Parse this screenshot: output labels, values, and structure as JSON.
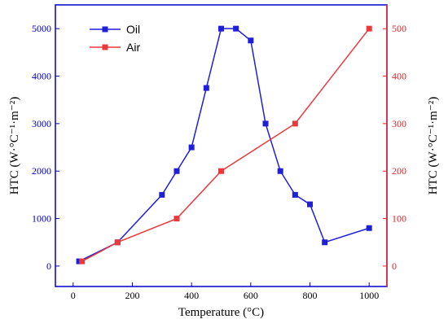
{
  "chart_data": {
    "type": "line",
    "title": "",
    "xlabel": "Temperature (°C)",
    "xlim": [
      -60,
      1060
    ],
    "xticks": [
      0,
      200,
      400,
      600,
      800,
      1000
    ],
    "left_axis": {
      "label": "HTC (W·°C⁻¹·m⁻²)",
      "ylim": [
        -430,
        5500
      ],
      "ticks": [
        0,
        1000,
        2000,
        3000,
        4000,
        5000
      ],
      "color": "#0000cc"
    },
    "right_axis": {
      "label": "HTC (W·°C⁻¹·m⁻²)",
      "ylim": [
        -43,
        550
      ],
      "ticks": [
        0,
        100,
        200,
        300,
        400,
        500
      ],
      "color": "#e8232a"
    },
    "grid": false,
    "legend_position": "top-left",
    "series": [
      {
        "name": "Oil",
        "axis": "left",
        "color": "#1f1fd8",
        "x": [
          20,
          150,
          300,
          350,
          400,
          450,
          500,
          550,
          600,
          650,
          700,
          750,
          800,
          850,
          1000
        ],
        "y": [
          100,
          500,
          1500,
          2000,
          2500,
          3750,
          5000,
          5000,
          4750,
          3000,
          2000,
          1500,
          1300,
          500,
          800
        ]
      },
      {
        "name": "Air",
        "axis": "right",
        "color": "#e8393d",
        "x": [
          30,
          150,
          350,
          500,
          750,
          1000
        ],
        "y": [
          10,
          50,
          100,
          200,
          300,
          500
        ]
      }
    ]
  }
}
